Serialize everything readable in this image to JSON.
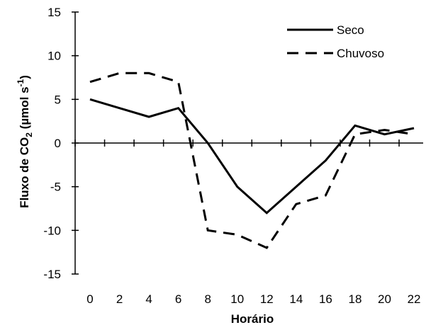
{
  "chart_data": {
    "type": "line",
    "xlabel": "Horário",
    "ylabel": {
      "prefix": "Fluxo de CO",
      "co2_subscript": "2",
      "unit_open": " (µmol s",
      "unit_superscript": "-1",
      "unit_close": ")"
    },
    "ylim": [
      -15,
      15
    ],
    "yticks": [
      -15,
      -10,
      -5,
      0,
      5,
      10,
      15
    ],
    "x": [
      0,
      2,
      4,
      6,
      8,
      10,
      12,
      14,
      16,
      18,
      20,
      22
    ],
    "xticklabels": [
      "0",
      "2",
      "4",
      "6",
      "8",
      "10",
      "12",
      "14",
      "16",
      "18",
      "20",
      "22"
    ],
    "legend_position": "top-right",
    "grid": false,
    "series": [
      {
        "name": "Seco",
        "style": "solid",
        "color": "#000000",
        "values": [
          5,
          4,
          3,
          4,
          0,
          -5,
          -8,
          -5,
          -2,
          2,
          1,
          1.7
        ]
      },
      {
        "name": "Chuvoso",
        "style": "dashed",
        "color": "#000000",
        "values": [
          7,
          8,
          8,
          7,
          -10,
          -10.5,
          -12,
          -7,
          -6,
          1,
          1.5,
          1
        ]
      }
    ]
  }
}
